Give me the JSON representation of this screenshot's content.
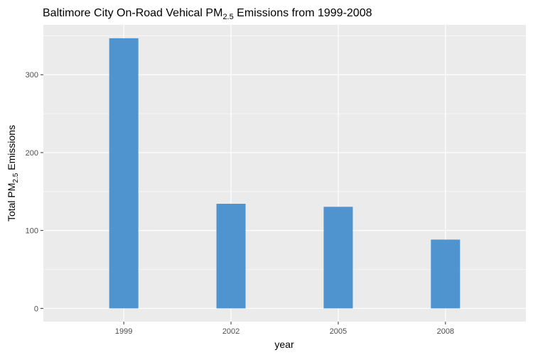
{
  "chart_data": {
    "type": "bar",
    "title": {
      "prefix": "Baltimore City On-Road Vehical PM",
      "subscript": "2.5",
      "suffix": " Emissions from 1999-2008"
    },
    "xlabel": "year",
    "ylabel": {
      "prefix": "Total PM",
      "subscript": "2.5",
      "suffix": " Emissions"
    },
    "categories": [
      "1999",
      "2002",
      "2005",
      "2008"
    ],
    "values": [
      346.8,
      134.3,
      130.4,
      88.3
    ],
    "ylim": [
      -17,
      364
    ],
    "yticks": [
      0,
      100,
      200,
      300
    ],
    "grid": true,
    "panel_background": "#ebebeb",
    "grid_color": "#ffffff",
    "bar_color": "#4f94cf"
  }
}
